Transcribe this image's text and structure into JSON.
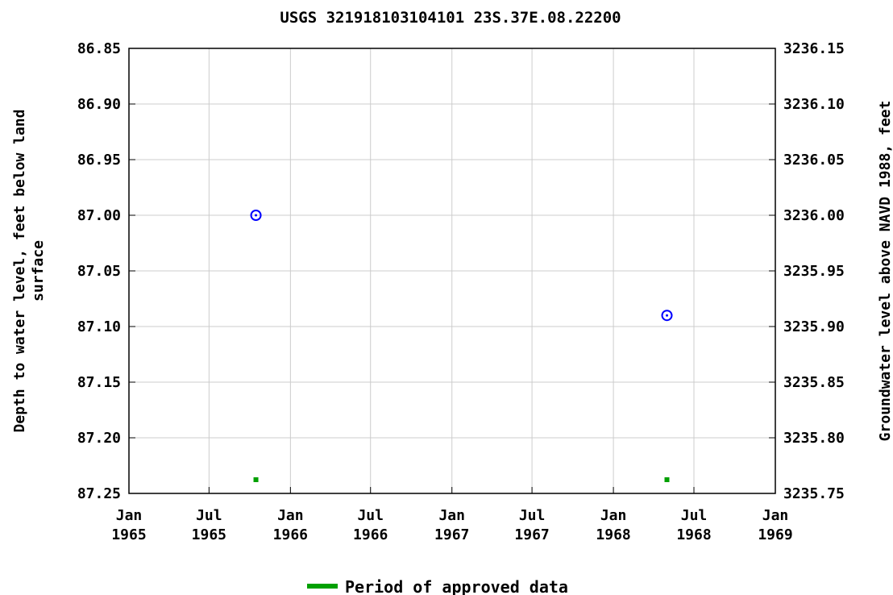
{
  "chart_data": {
    "type": "scatter",
    "title": "USGS 321918103104101 23S.37E.08.22200",
    "ylabel_left": [
      "Depth to water level, feet below land",
      "surface"
    ],
    "ylabel_right": "Groundwater level above NAVD 1988, feet",
    "y_left_range": [
      86.85,
      87.25
    ],
    "y_left_inverted": true,
    "y_left_ticks": [
      "86.85",
      "86.90",
      "86.95",
      "87.00",
      "87.05",
      "87.10",
      "87.15",
      "87.20",
      "87.25"
    ],
    "y_right_range": [
      3236.15,
      3235.75
    ],
    "y_right_ticks": [
      "3236.15",
      "3236.10",
      "3236.05",
      "3236.00",
      "3235.95",
      "3235.90",
      "3235.85",
      "3235.80",
      "3235.75"
    ],
    "x_range": [
      "1965-01-01",
      "1969-01-01"
    ],
    "x_ticks": [
      {
        "date": "1965-01-01",
        "line1": "Jan",
        "line2": "1965"
      },
      {
        "date": "1965-07-01",
        "line1": "Jul",
        "line2": "1965"
      },
      {
        "date": "1966-01-01",
        "line1": "Jan",
        "line2": "1966"
      },
      {
        "date": "1966-07-01",
        "line1": "Jul",
        "line2": "1966"
      },
      {
        "date": "1967-01-01",
        "line1": "Jan",
        "line2": "1967"
      },
      {
        "date": "1967-07-01",
        "line1": "Jul",
        "line2": "1967"
      },
      {
        "date": "1968-01-01",
        "line1": "Jan",
        "line2": "1968"
      },
      {
        "date": "1968-07-01",
        "line1": "Jul",
        "line2": "1968"
      },
      {
        "date": "1969-01-01",
        "line1": "Jan",
        "line2": "1969"
      }
    ],
    "grid": true,
    "series": [
      {
        "points": [
          {
            "date": "1965-10-15",
            "value": 87.0
          },
          {
            "date": "1968-05-01",
            "value": 87.09
          }
        ],
        "color": "#0000ff",
        "marker": "open-circle"
      }
    ],
    "approved_periods": [
      {
        "date": "1965-10-15"
      },
      {
        "date": "1968-05-01"
      }
    ],
    "approved_color": "#00a000",
    "legend": {
      "label": "Period of approved data",
      "position": "bottom-center"
    }
  }
}
